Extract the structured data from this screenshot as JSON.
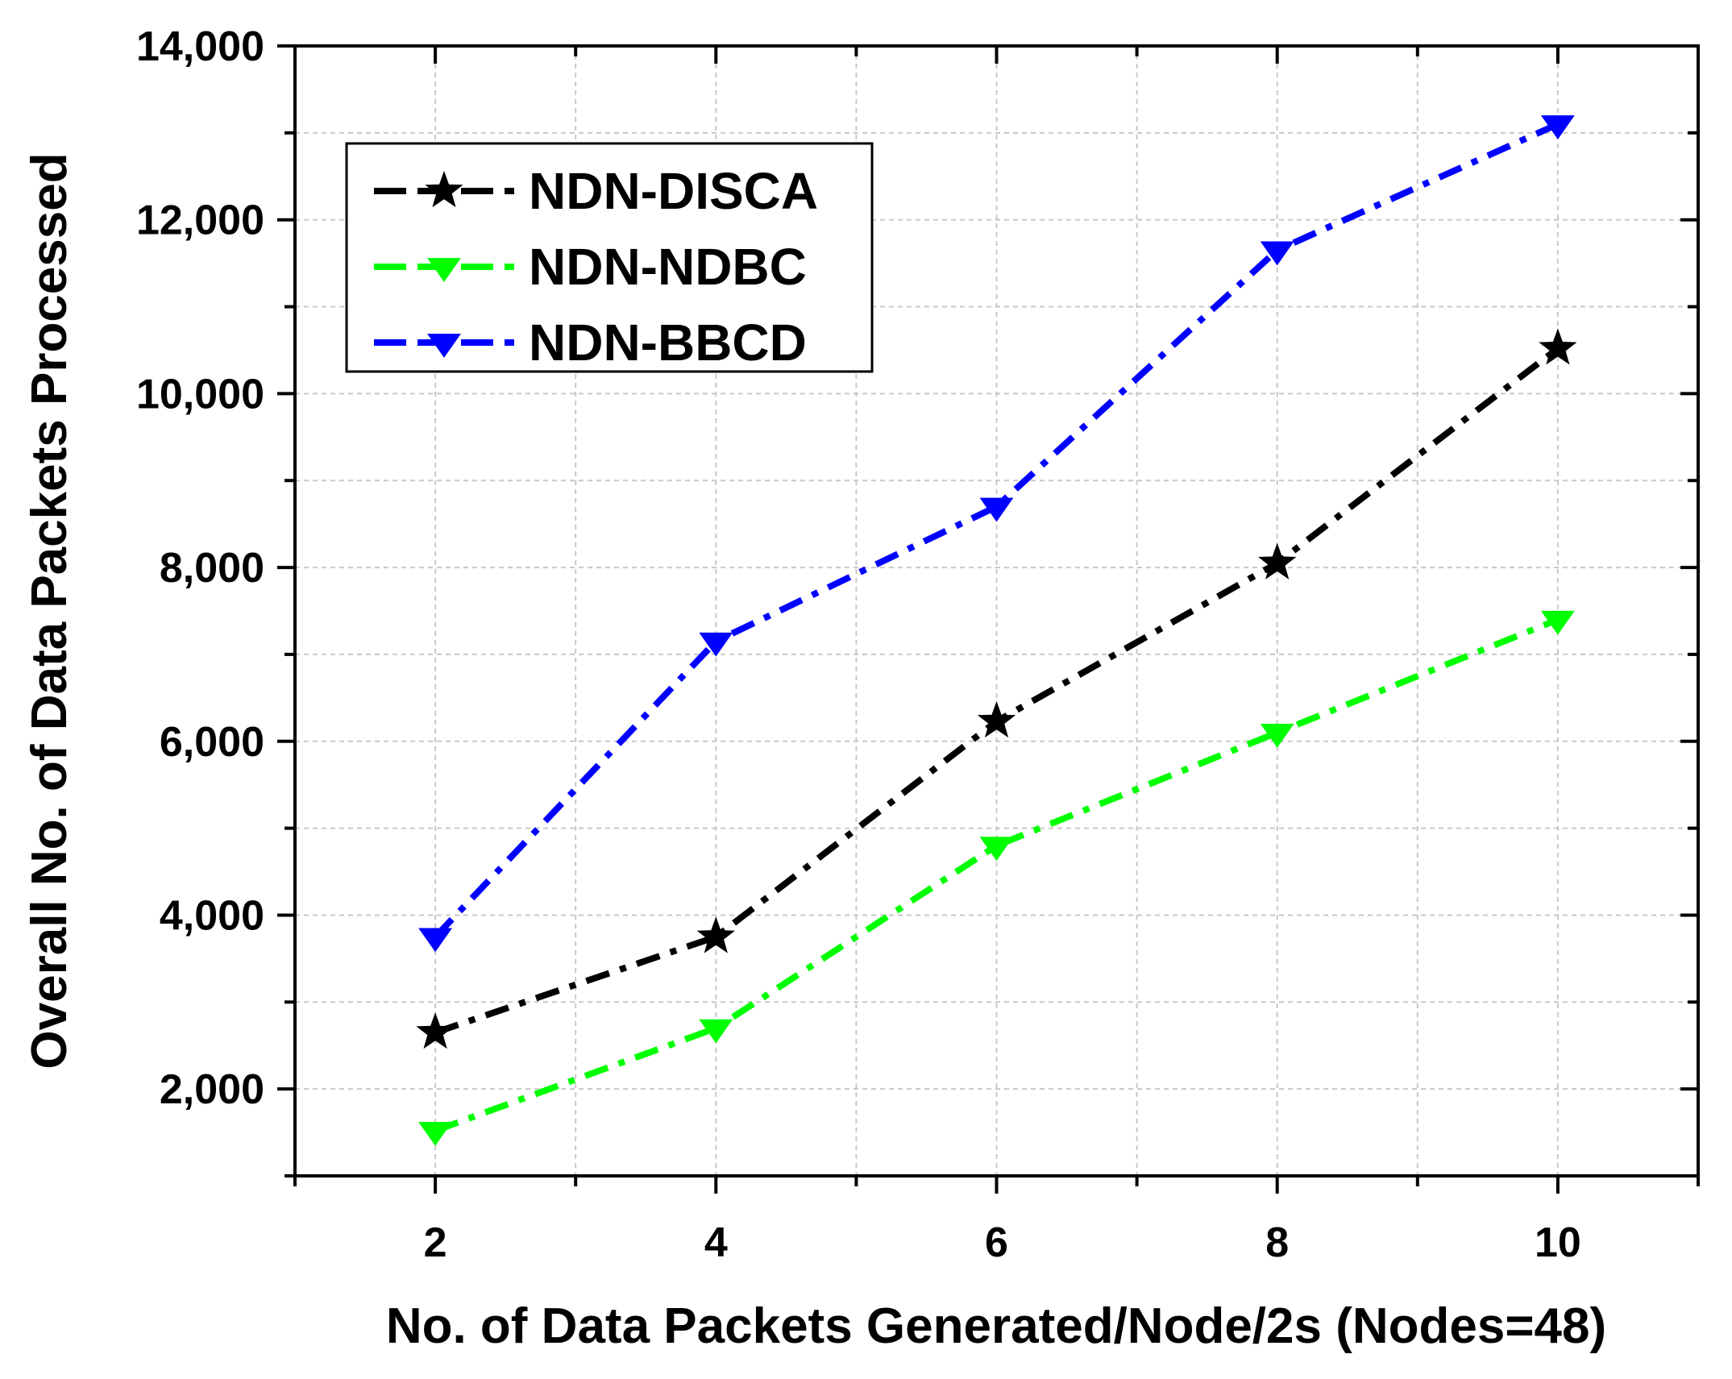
{
  "chart_data": {
    "type": "line",
    "title": "",
    "xlabel": "No. of Data Packets Generated/Node/2s (Nodes=48)",
    "ylabel": "Overall No. of Data Packets Processed",
    "xlim": [
      1,
      11
    ],
    "ylim": [
      1000,
      14000
    ],
    "x_major_ticks": [
      2,
      4,
      6,
      8,
      10
    ],
    "x_minor_ticks": [
      1,
      3,
      5,
      7,
      9,
      11
    ],
    "x_tick_labels": [
      "2",
      "4",
      "6",
      "8",
      "10"
    ],
    "y_major_ticks": [
      2000,
      4000,
      6000,
      8000,
      10000,
      12000,
      14000
    ],
    "y_minor_ticks": [
      1000,
      3000,
      5000,
      7000,
      9000,
      11000,
      13000
    ],
    "y_tick_labels": [
      "2,000",
      "4,000",
      "6,000",
      "8,000",
      "10,000",
      "12,000",
      "14,000"
    ],
    "grid": true,
    "legend_position": "top-left",
    "x": [
      2,
      4,
      6,
      8,
      10
    ],
    "series": [
      {
        "name": "NDN-DISCA",
        "color": "#000000",
        "marker": "star",
        "line_style": "dash-dot",
        "values": [
          2650,
          3750,
          6230,
          8050,
          10520
        ]
      },
      {
        "name": "NDN-NDBC",
        "color": "#00ff00",
        "marker": "triangle-down",
        "line_style": "dash-dot",
        "values": [
          1520,
          2700,
          4800,
          6100,
          7400
        ]
      },
      {
        "name": "NDN-BBCD",
        "color": "#0000ff",
        "marker": "triangle-down",
        "line_style": "dash-dot",
        "values": [
          3750,
          7150,
          8700,
          11650,
          13100
        ]
      }
    ]
  }
}
